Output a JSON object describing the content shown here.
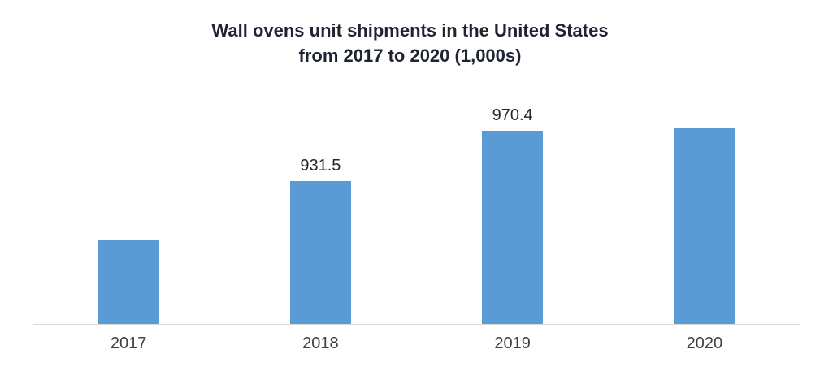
{
  "chart_data": {
    "type": "bar",
    "title_line1": "Wall ovens unit shipments in the United States",
    "title_line2": "from 2017 to 2020 (1,000s)",
    "categories": [
      "2017",
      "2018",
      "2019",
      "2020"
    ],
    "values": [
      886.0,
      931.5,
      970.4,
      984.2
    ],
    "data_labels": [
      "",
      "931.5",
      "970.4",
      ""
    ],
    "ylim": [
      822,
      990
    ],
    "bar_color": "#5B9BD5",
    "axis_line_color": "#D9D9D9",
    "title_color": "#1f2433",
    "grid": "off",
    "legend": "none"
  }
}
